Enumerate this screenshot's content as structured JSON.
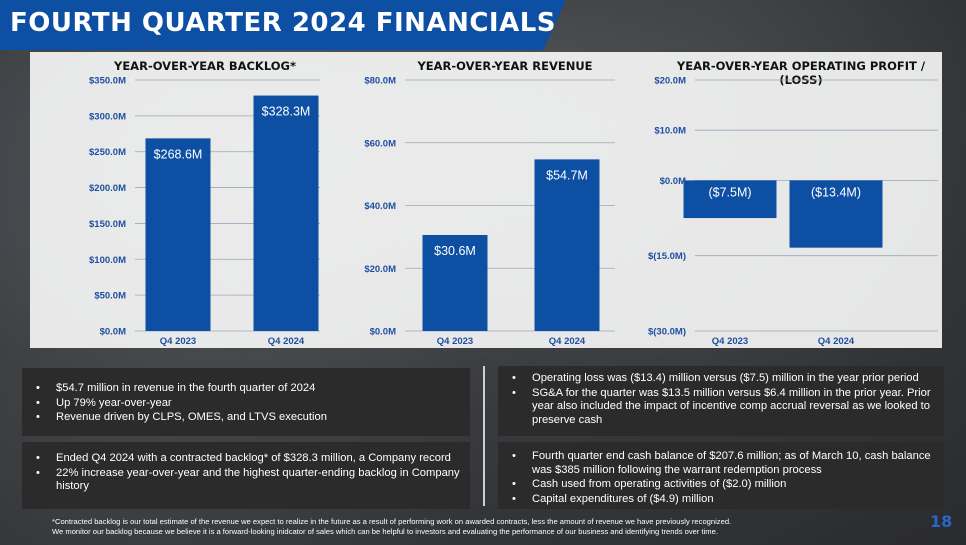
{
  "slide": {
    "title": "Fourth Quarter 2024 Financials",
    "page_number": "18"
  },
  "colors": {
    "bar": "#0d4fa3",
    "title_bar": "#0d4fa3",
    "tick": "#1f4fa0",
    "box": "#2b2b2b"
  },
  "chart_data": [
    {
      "type": "bar",
      "title": "Year-over-Year Backlog*",
      "categories": [
        "Q4 2023",
        "Q4 2024"
      ],
      "values": [
        268.6,
        328.3
      ],
      "data_labels": [
        "$268.6M",
        "$328.3M"
      ],
      "ylim": [
        0,
        350
      ],
      "yticks": [
        0,
        50,
        100,
        150,
        200,
        250,
        300,
        350
      ],
      "ytick_labels": [
        "$0.0M",
        "$50.0M",
        "$100.0M",
        "$150.0M",
        "$200.0M",
        "$250.0M",
        "$300.0M",
        "$350.0M"
      ],
      "grid": true
    },
    {
      "type": "bar",
      "title": "Year-over-Year Revenue",
      "categories": [
        "Q4 2023",
        "Q4 2024"
      ],
      "values": [
        30.6,
        54.7
      ],
      "data_labels": [
        "$30.6M",
        "$54.7M"
      ],
      "ylim": [
        0,
        80
      ],
      "yticks": [
        0,
        20,
        40,
        60,
        80
      ],
      "ytick_labels": [
        "$0.0M",
        "$20.0M",
        "$40.0M",
        "$60.0M",
        "$80.0M"
      ],
      "grid": true
    },
    {
      "type": "bar",
      "title": "Year-over-Year Operating Profit / (Loss)",
      "categories": [
        "Q4 2023",
        "Q4 2024"
      ],
      "values": [
        -7.5,
        -13.4
      ],
      "data_labels": [
        "($7.5M)",
        "($13.4M)"
      ],
      "ylim": [
        -30,
        20
      ],
      "yticks": [
        -30,
        -15,
        0,
        10,
        20
      ],
      "ytick_labels": [
        "$(30.0M)",
        "$(15.0M)",
        "$0.0M",
        "$10.0M",
        "$20.0M"
      ],
      "grid": true
    }
  ],
  "boxes": {
    "revenue": [
      "$54.7 million in revenue in the fourth quarter of 2024",
      "Up 79% year-over-year",
      "Revenue driven by CLPS, OMES, and LTVS execution"
    ],
    "backlog": [
      "Ended Q4 2024 with a contracted backlog* of $328.3 million, a Company record",
      "22% increase year-over-year and the highest quarter-ending backlog in Company history"
    ],
    "operating": [
      "Operating loss was ($13.4) million versus ($7.5) million in the year prior period",
      "SG&A for the quarter was $13.5 million versus $6.4 million in the prior year. Prior year also included the impact of incentive comp accrual reversal as we looked to preserve cash"
    ],
    "cash": [
      "Fourth quarter end cash balance of $207.6 million; as of March 10, cash balance was $385 million following the warrant redemption process",
      "Cash used from operating activities of ($2.0) million",
      "Capital expenditures of ($4.9) million"
    ]
  },
  "footnote": {
    "line1": "*Contracted backlog is our total estimate of the revenue we expect to realize in the future as a result of performing work on awarded contracts, less the amount of revenue we have previously recognized.",
    "line2": "We monitor our backlog because we believe it is a forward-looking inidcator of sales which can be helpful to investors and evaluating the performance of our business and identifying trends over time."
  }
}
